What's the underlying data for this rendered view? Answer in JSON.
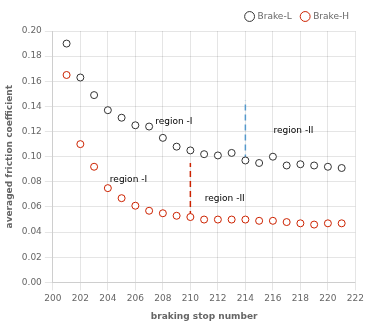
{
  "chart_data": {
    "type": "scatter",
    "xlabel": "braking stop number",
    "ylabel": "averaged friction coefficient",
    "x": [
      201,
      202,
      203,
      204,
      205,
      206,
      207,
      208,
      209,
      210,
      211,
      212,
      213,
      214,
      215,
      216,
      217,
      218,
      219,
      220,
      221
    ],
    "series": [
      {
        "name": "Brake-L",
        "color": "#333333",
        "marker": "circle",
        "values": [
          0.19,
          0.163,
          0.149,
          0.137,
          0.131,
          0.125,
          0.124,
          0.115,
          0.108,
          0.105,
          0.102,
          0.101,
          0.103,
          0.097,
          0.095,
          0.1,
          0.093,
          0.094,
          0.093,
          0.092,
          0.091
        ]
      },
      {
        "name": "Brake-H",
        "color": "#cc2200",
        "marker": "circle",
        "values": [
          0.165,
          0.11,
          0.092,
          0.075,
          0.067,
          0.061,
          0.057,
          0.055,
          0.053,
          0.052,
          0.05,
          0.05,
          0.05,
          0.05,
          0.049,
          0.049,
          0.048,
          0.047,
          0.046,
          0.047,
          0.047
        ]
      }
    ],
    "lines": [
      {
        "x": 210,
        "y_bottom": 0.052,
        "y_top": 0.095,
        "color": "#cc2200",
        "line_style": "dashed"
      },
      {
        "x": 214,
        "y_bottom": 0.097,
        "y_top": 0.145,
        "color": "#5599cc",
        "line_style": "dashed"
      }
    ],
    "annotations": [
      {
        "text": "region -I",
        "x": 208.8,
        "y": 0.124
      },
      {
        "text": "region -II",
        "x": 217.5,
        "y": 0.117
      },
      {
        "text": "region -I",
        "x": 205.5,
        "y": 0.078
      },
      {
        "text": "region -II",
        "x": 212.5,
        "y": 0.063
      }
    ],
    "xlim": [
      200,
      222
    ],
    "ylim": [
      0,
      0.2
    ],
    "xticks": [
      200,
      202,
      204,
      206,
      208,
      210,
      212,
      214,
      216,
      218,
      220,
      222
    ],
    "yticks": [
      {
        "value": 0,
        "label": "0.00"
      },
      0.02,
      0.04,
      0.06,
      0.08,
      {
        "value": 0.1,
        "label": "0.10"
      },
      0.12,
      0.14,
      0.16,
      0.18,
      {
        "value": 0.2,
        "label": "0.20"
      }
    ],
    "grid": true,
    "legend": "upper right"
  }
}
